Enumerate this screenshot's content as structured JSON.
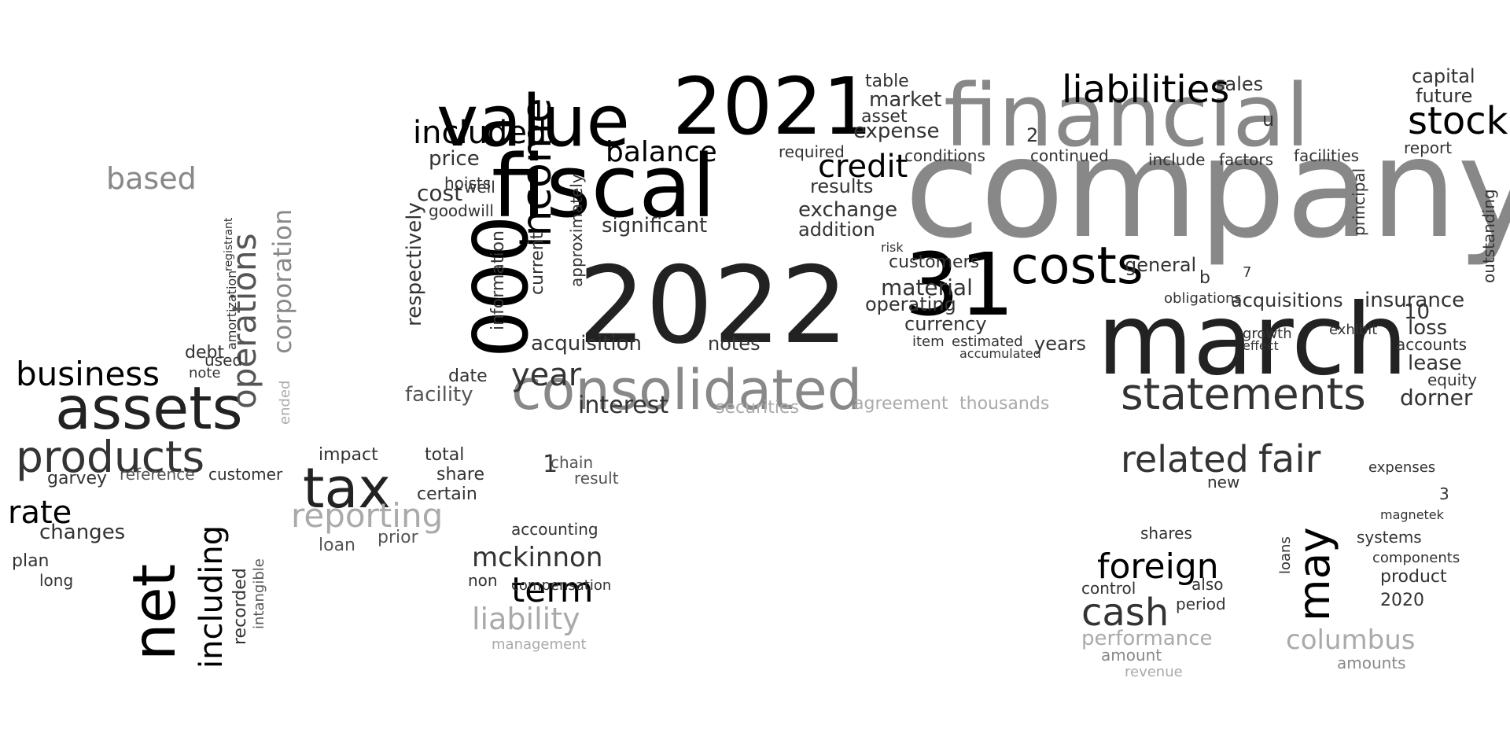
{
  "word_cloud": {
    "words": [
      {
        "text": "company",
        "tone": "s5"
      },
      {
        "text": "financial",
        "tone": "s5"
      },
      {
        "text": "fiscal",
        "tone": "s1"
      },
      {
        "text": "2022",
        "tone": "s2"
      },
      {
        "text": "2021",
        "tone": "s1"
      },
      {
        "text": "march",
        "tone": "s2"
      },
      {
        "text": "31",
        "tone": "s1"
      },
      {
        "text": "value",
        "tone": "s1"
      },
      {
        "text": "000",
        "tone": "s1"
      },
      {
        "text": "consolidated",
        "tone": "s5"
      },
      {
        "text": "costs",
        "tone": "s1"
      },
      {
        "text": "statements",
        "tone": "s3"
      },
      {
        "text": "liabilities",
        "tone": "s1"
      },
      {
        "text": "stock",
        "tone": "s1"
      },
      {
        "text": "income",
        "tone": "s1"
      },
      {
        "text": "included",
        "tone": "s1"
      },
      {
        "text": "balance",
        "tone": "s1"
      },
      {
        "text": "credit",
        "tone": "s1"
      },
      {
        "text": "year",
        "tone": "s3"
      },
      {
        "text": "interest",
        "tone": "s3"
      },
      {
        "text": "assets",
        "tone": "s2"
      },
      {
        "text": "products",
        "tone": "s3"
      },
      {
        "text": "business",
        "tone": "s1"
      },
      {
        "text": "operations",
        "tone": "s4"
      },
      {
        "text": "corporation",
        "tone": "s5"
      },
      {
        "text": "based",
        "tone": "s5"
      },
      {
        "text": "tax",
        "tone": "s2"
      },
      {
        "text": "net",
        "tone": "s1"
      },
      {
        "text": "including",
        "tone": "s1"
      },
      {
        "text": "rate",
        "tone": "s1"
      },
      {
        "text": "changes",
        "tone": "s3"
      },
      {
        "text": "reporting",
        "tone": "s6"
      },
      {
        "text": "mckinnon",
        "tone": "s3"
      },
      {
        "text": "term",
        "tone": "s1"
      },
      {
        "text": "liability",
        "tone": "s6"
      },
      {
        "text": "related",
        "tone": "s3"
      },
      {
        "text": "fair",
        "tone": "s3"
      },
      {
        "text": "foreign",
        "tone": "s1"
      },
      {
        "text": "cash",
        "tone": "s3"
      },
      {
        "text": "may",
        "tone": "s1"
      },
      {
        "text": "columbus",
        "tone": "s6"
      },
      {
        "text": "performance",
        "tone": "s6"
      },
      {
        "text": "acquisition",
        "tone": "s3"
      },
      {
        "text": "significant",
        "tone": "s3"
      },
      {
        "text": "exchange",
        "tone": "s3"
      },
      {
        "text": "market",
        "tone": "s3"
      },
      {
        "text": "expense",
        "tone": "s3"
      },
      {
        "text": "customers",
        "tone": "s3"
      },
      {
        "text": "material",
        "tone": "s3"
      },
      {
        "text": "operating",
        "tone": "s3"
      },
      {
        "text": "currency",
        "tone": "s3"
      },
      {
        "text": "insurance",
        "tone": "s3"
      },
      {
        "text": "loss",
        "tone": "s3"
      },
      {
        "text": "accounts",
        "tone": "s3"
      },
      {
        "text": "lease",
        "tone": "s3"
      },
      {
        "text": "dorner",
        "tone": "s3"
      },
      {
        "text": "facility",
        "tone": "s4"
      },
      {
        "text": "price",
        "tone": "s3"
      },
      {
        "text": "cost",
        "tone": "s3"
      },
      {
        "text": "date",
        "tone": "s3"
      },
      {
        "text": "respectively",
        "tone": "s3"
      },
      {
        "text": "information",
        "tone": "s3"
      },
      {
        "text": "current",
        "tone": "s3"
      },
      {
        "text": "approximately",
        "tone": "s3"
      },
      {
        "text": "results",
        "tone": "s3"
      },
      {
        "text": "addition",
        "tone": "s3"
      },
      {
        "text": "notes",
        "tone": "s3"
      },
      {
        "text": "years",
        "tone": "s3"
      },
      {
        "text": "general",
        "tone": "s3"
      },
      {
        "text": "acquisitions",
        "tone": "s3"
      },
      {
        "text": "sales",
        "tone": "s3"
      },
      {
        "text": "future",
        "tone": "s3"
      },
      {
        "text": "capital",
        "tone": "s3"
      },
      {
        "text": "report",
        "tone": "s3"
      },
      {
        "text": "facilities",
        "tone": "s3"
      },
      {
        "text": "factors",
        "tone": "s3"
      },
      {
        "text": "include",
        "tone": "s3"
      },
      {
        "text": "continued",
        "tone": "s3"
      },
      {
        "text": "conditions",
        "tone": "s3"
      },
      {
        "text": "table",
        "tone": "s3"
      },
      {
        "text": "asset",
        "tone": "s3"
      },
      {
        "text": "required",
        "tone": "s3"
      },
      {
        "text": "agreement",
        "tone": "s6"
      },
      {
        "text": "thousands",
        "tone": "s6"
      },
      {
        "text": "securities",
        "tone": "s6"
      },
      {
        "text": "goodwill",
        "tone": "s3"
      },
      {
        "text": "hoists",
        "tone": "s3"
      },
      {
        "text": "well",
        "tone": "s3"
      },
      {
        "text": "equity",
        "tone": "s3"
      },
      {
        "text": "outstanding",
        "tone": "s3"
      },
      {
        "text": "principal",
        "tone": "s3"
      },
      {
        "text": "debt",
        "tone": "s3"
      },
      {
        "text": "note",
        "tone": "s3"
      },
      {
        "text": "used",
        "tone": "s3"
      },
      {
        "text": "garvey",
        "tone": "s3"
      },
      {
        "text": "reference",
        "tone": "s4"
      },
      {
        "text": "customer",
        "tone": "s3"
      },
      {
        "text": "impact",
        "tone": "s3"
      },
      {
        "text": "total",
        "tone": "s3"
      },
      {
        "text": "share",
        "tone": "s3"
      },
      {
        "text": "certain",
        "tone": "s3"
      },
      {
        "text": "prior",
        "tone": "s4"
      },
      {
        "text": "loan",
        "tone": "s4"
      },
      {
        "text": "plan",
        "tone": "s3"
      },
      {
        "text": "long",
        "tone": "s3"
      },
      {
        "text": "accounting",
        "tone": "s3"
      },
      {
        "text": "compensation",
        "tone": "s3"
      },
      {
        "text": "management",
        "tone": "s6"
      },
      {
        "text": "non",
        "tone": "s3"
      },
      {
        "text": "chain",
        "tone": "s4"
      },
      {
        "text": "result",
        "tone": "s4"
      },
      {
        "text": "shares",
        "tone": "s3"
      },
      {
        "text": "control",
        "tone": "s3"
      },
      {
        "text": "period",
        "tone": "s3"
      },
      {
        "text": "also",
        "tone": "s3"
      },
      {
        "text": "amount",
        "tone": "s5"
      },
      {
        "text": "revenue",
        "tone": "s6"
      },
      {
        "text": "new",
        "tone": "s3"
      },
      {
        "text": "expenses",
        "tone": "s3"
      },
      {
        "text": "systems",
        "tone": "s3"
      },
      {
        "text": "components",
        "tone": "s3"
      },
      {
        "text": "product",
        "tone": "s3"
      },
      {
        "text": "2020",
        "tone": "s3"
      },
      {
        "text": "amounts",
        "tone": "s5"
      },
      {
        "text": "recorded",
        "tone": "s3"
      },
      {
        "text": "intangible",
        "tone": "s4"
      },
      {
        "text": "ended",
        "tone": "s6"
      },
      {
        "text": "amortization",
        "tone": "s3"
      },
      {
        "text": "registrant",
        "tone": "s3"
      },
      {
        "text": "obligations",
        "tone": "s3"
      },
      {
        "text": "exhibit",
        "tone": "s3"
      },
      {
        "text": "loans",
        "tone": "s3"
      },
      {
        "text": "risk",
        "tone": "s3"
      },
      {
        "text": "item",
        "tone": "s3"
      },
      {
        "text": "estimated",
        "tone": "s3"
      },
      {
        "text": "accumulated",
        "tone": "s3"
      },
      {
        "text": "growth",
        "tone": "s3"
      },
      {
        "text": "effect",
        "tone": "s3"
      },
      {
        "text": "magnetek",
        "tone": "s3"
      },
      {
        "text": "1",
        "tone": "s3"
      },
      {
        "text": "10",
        "tone": "s3"
      },
      {
        "text": "3",
        "tone": "s3"
      },
      {
        "text": "u",
        "tone": "s3"
      },
      {
        "text": "b",
        "tone": "s3"
      },
      {
        "text": "2",
        "tone": "s3"
      },
      {
        "text": "7",
        "tone": "s3"
      }
    ]
  }
}
